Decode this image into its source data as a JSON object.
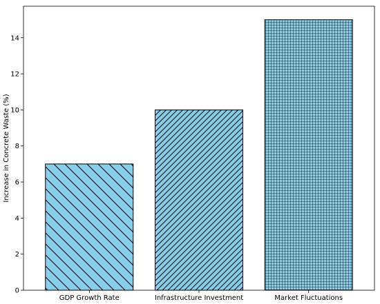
{
  "chart_data": {
    "type": "bar",
    "title": "",
    "xlabel": "",
    "ylabel": "Increase in Concrete Waste (%)",
    "categories": [
      "GDP Growth Rate",
      "Infrastructure Investment",
      "Market Fluctuations"
    ],
    "values": [
      7,
      10,
      15
    ],
    "ylim": [
      0,
      15.75
    ],
    "yticks": [
      0,
      2,
      4,
      6,
      8,
      10,
      12,
      14
    ],
    "hatches": [
      "\\",
      "///",
      "+"
    ],
    "bar_color": "#87ceeb",
    "edge_color": "#000000",
    "grid": false,
    "legend": "none"
  }
}
